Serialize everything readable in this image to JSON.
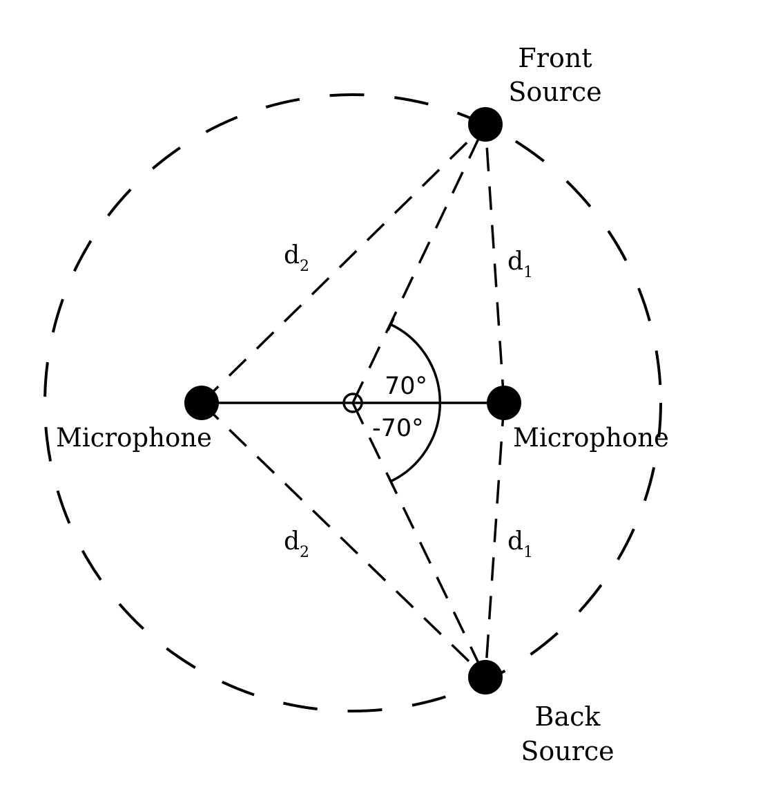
{
  "labels": {
    "front_source": [
      "Front",
      "Source"
    ],
    "back_source": [
      "Back",
      "Source"
    ],
    "mic_left": "Microphone",
    "mic_right": "Microphone",
    "d1_top": {
      "base": "d",
      "sub": "1"
    },
    "d2_top": {
      "base": "d",
      "sub": "2"
    },
    "d1_bottom": {
      "base": "d",
      "sub": "1"
    },
    "d2_bottom": {
      "base": "d",
      "sub": "2"
    },
    "angle_pos": "70°",
    "angle_neg": "-70°"
  },
  "colors": {
    "stroke": "#000000",
    "background": "#ffffff"
  }
}
